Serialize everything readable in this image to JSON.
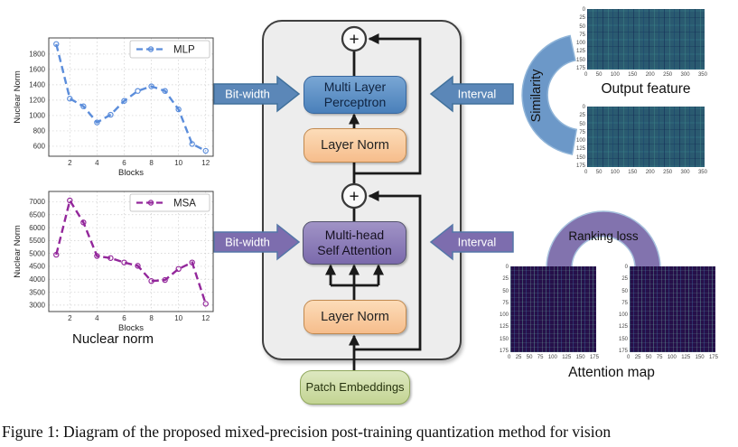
{
  "figure": {
    "caption": "Figure 1: Diagram of the proposed mixed-precision post-training quantization method for vision"
  },
  "pipeline": {
    "plus": "+",
    "mlp_block": "Multi Layer\nPerceptron",
    "layer_norm_top": "Layer Norm",
    "msa_block": "Multi-head\nSelf Attention",
    "layer_norm_bottom": "Layer Norm",
    "patch_embeddings": "Patch Embeddings"
  },
  "annotations": {
    "bitwidth_top": "Bit-width",
    "interval_top": "Interval",
    "bitwidth_bottom": "Bit-width",
    "interval_bottom": "Interval",
    "similarity": "Similarity",
    "ranking_loss": "Ranking loss",
    "nuclear_norm_caption": "Nuclear norm",
    "output_feature_label": "Output feature",
    "attention_map_label": "Attention map"
  },
  "colors": {
    "mlp_line": "#5b8ddb",
    "msa_line": "#93279b",
    "mlp_block": "#4a80ba",
    "msa_block": "#8273b4",
    "layer_norm_block": "#f9c79c",
    "patch_embeddings_block": "#c9d79a",
    "bitwidth_arrow_top": "#5b87b8",
    "bitwidth_arrow_bottom": "#7d6dae",
    "similarity_arc": "#6c98c8",
    "ranking_loss_arc": "#8273ae",
    "container_fill": "#ededed",
    "output_feature_heatmap": "#2a5a70",
    "attention_heatmap": "#26104a"
  },
  "chart_data": [
    {
      "type": "line",
      "title": "",
      "xlabel": "Blocks",
      "ylabel": "Nuclear Norm",
      "x": [
        1,
        2,
        3,
        4,
        5,
        6,
        7,
        8,
        9,
        10,
        11,
        12
      ],
      "series": [
        {
          "name": "MLP",
          "values": [
            1930,
            1220,
            1120,
            910,
            1010,
            1190,
            1320,
            1380,
            1320,
            1080,
            630,
            540
          ]
        }
      ],
      "xticks": [
        2,
        4,
        6,
        8,
        10,
        12
      ],
      "yticks": [
        600,
        800,
        1000,
        1200,
        1400,
        1600,
        1800
      ],
      "xlim": [
        0.45,
        12.55
      ],
      "ylim": [
        470,
        2010
      ],
      "color": "#5b8ddb",
      "grid": true,
      "legend_position": "upper right",
      "line_style": "dashed with circle markers"
    },
    {
      "type": "line",
      "title": "Nuclear norm",
      "xlabel": "Blocks",
      "ylabel": "Nuclear Norm",
      "x": [
        1,
        2,
        3,
        4,
        5,
        6,
        7,
        8,
        9,
        10,
        11,
        12
      ],
      "series": [
        {
          "name": "MSA",
          "values": [
            4950,
            7050,
            6200,
            4900,
            4820,
            4650,
            4520,
            3930,
            3970,
            4400,
            4650,
            3050
          ]
        }
      ],
      "xticks": [
        2,
        4,
        6,
        8,
        10,
        12
      ],
      "yticks": [
        3000,
        3500,
        4000,
        4500,
        5000,
        5500,
        6000,
        6500,
        7000
      ],
      "xlim": [
        0.45,
        12.55
      ],
      "ylim": [
        2750,
        7400
      ],
      "color": "#93279b",
      "grid": true,
      "legend_position": "upper right",
      "line_style": "dashed with circle markers"
    },
    {
      "type": "heatmap",
      "title": "Output feature",
      "xticks": [
        "0",
        "50",
        "100",
        "150",
        "200",
        "250",
        "300",
        "350"
      ],
      "yticks": [
        "0",
        "25",
        "50",
        "75",
        "100",
        "125",
        "150",
        "175"
      ],
      "colormap": "dark teal-blue with vertical striping"
    },
    {
      "type": "heatmap",
      "title": "Output feature",
      "xticks": [
        "0",
        "50",
        "100",
        "150",
        "200",
        "250",
        "300",
        "350"
      ],
      "yticks": [
        "0",
        "25",
        "50",
        "75",
        "100",
        "125",
        "150",
        "175"
      ],
      "colormap": "dark teal-blue with vertical striping"
    },
    {
      "type": "heatmap",
      "title": "Attention map",
      "xticks": [
        "0",
        "25",
        "50",
        "75",
        "100",
        "125",
        "150",
        "175"
      ],
      "yticks": [
        "0",
        "25",
        "50",
        "75",
        "100",
        "125",
        "150",
        "175"
      ],
      "colormap": "dark purple with bright vertical stripes"
    },
    {
      "type": "heatmap",
      "title": "Attention map",
      "xticks": [
        "0",
        "25",
        "50",
        "75",
        "100",
        "125",
        "150",
        "175"
      ],
      "yticks": [
        "0",
        "25",
        "50",
        "75",
        "100",
        "125",
        "150",
        "175"
      ],
      "colormap": "dark purple with bright vertical stripes"
    }
  ]
}
